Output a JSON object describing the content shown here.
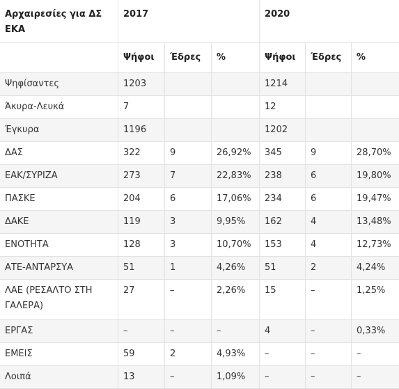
{
  "table": {
    "header_title": "Αρχαιρεσίες για ΔΣ ΕΚΑ",
    "years": [
      "2017",
      "2020"
    ],
    "subheaders": [
      "Ψήφοι",
      "Έδρες",
      "%"
    ],
    "rows": [
      {
        "label": "Ψηφίσαντες",
        "cells": [
          "1203",
          "",
          "",
          "1214",
          "",
          ""
        ]
      },
      {
        "label": "Άκυρα-Λευκά",
        "cells": [
          "7",
          "",
          "",
          "12",
          "",
          ""
        ]
      },
      {
        "label": "Έγκυρα",
        "cells": [
          "1196",
          "",
          "",
          "1202",
          "",
          ""
        ]
      },
      {
        "label": "ΔΑΣ",
        "cells": [
          "322",
          "9",
          "26,92%",
          "345",
          "9",
          "28,70%"
        ]
      },
      {
        "label": "ΕΑΚ/ΣΥΡΙΖΑ",
        "cells": [
          "273",
          "7",
          "22,83%",
          "238",
          "6",
          "19,80%"
        ]
      },
      {
        "label": "ΠΑΣΚΕ",
        "cells": [
          "204",
          "6",
          "17,06%",
          "234",
          "6",
          "19,47%"
        ]
      },
      {
        "label": "ΔΑΚΕ",
        "cells": [
          "119",
          "3",
          "9,95%",
          "162",
          "4",
          "13,48%"
        ]
      },
      {
        "label": "ΕΝΟΤΗΤΑ",
        "cells": [
          "128",
          "3",
          "10,70%",
          "153",
          "4",
          "12,73%"
        ]
      },
      {
        "label": "ΑΤΕ-ΑΝΤΑΡΣΥΑ",
        "cells": [
          "51",
          "1",
          "4,26%",
          "51",
          "2",
          "4,24%"
        ]
      },
      {
        "label": "ΛΑΕ (ΡΕΣΑΛΤΟ ΣΤΗ ΓΑΛΕΡΑ)",
        "cells": [
          "27",
          "–",
          "2,26%",
          "15",
          "–",
          "1,25%"
        ]
      },
      {
        "label": "ΕΡΓΑΣ",
        "cells": [
          "–",
          "–",
          "–",
          "4",
          "–",
          "0,33%"
        ]
      },
      {
        "label": "ΕΜΕΙΣ",
        "cells": [
          "59",
          "2",
          "4,93%",
          "–",
          "–",
          "–"
        ]
      },
      {
        "label": "Λοιπά",
        "cells": [
          "13",
          "–",
          "1,09%",
          "–",
          "–",
          "–"
        ]
      }
    ]
  }
}
